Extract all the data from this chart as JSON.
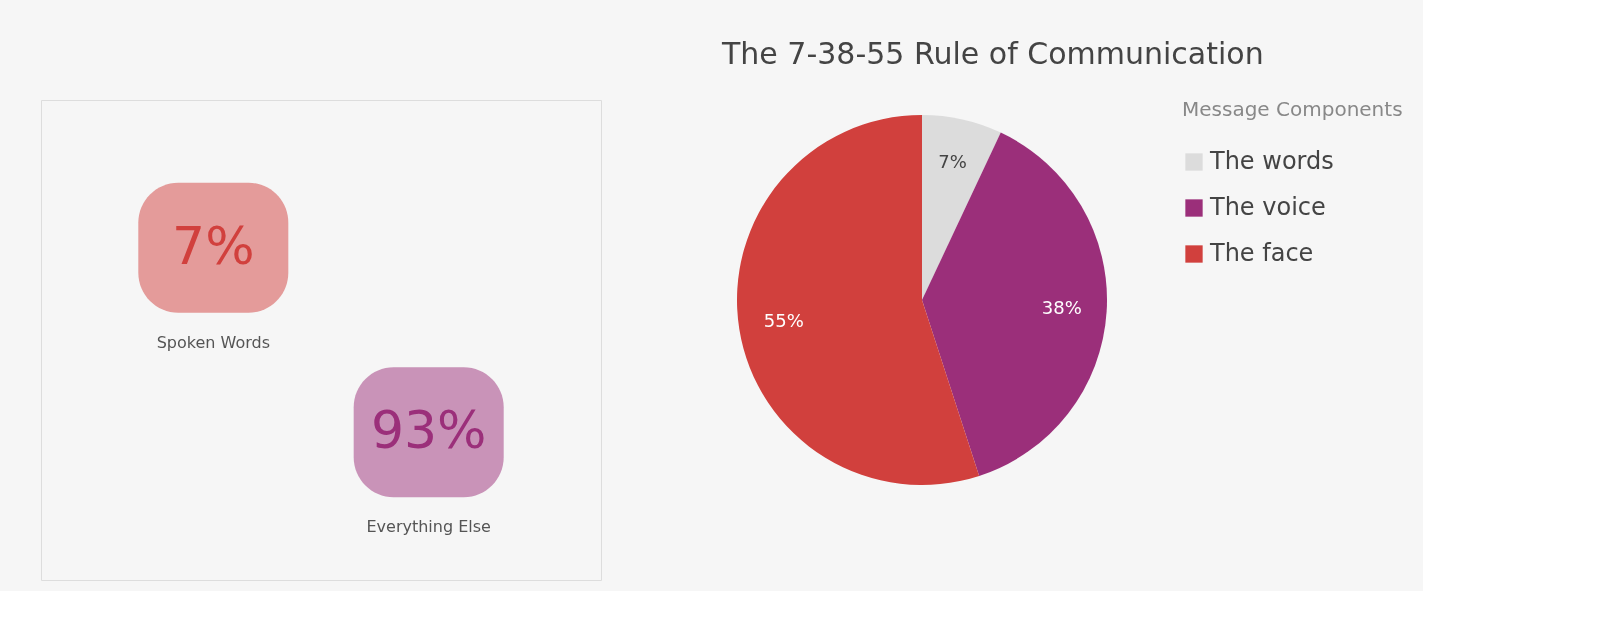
{
  "chart_data": [
    {
      "type": "other",
      "categories": [
        "Spoken Words",
        "Everything Else"
      ],
      "values": [
        7,
        93
      ],
      "value_labels": [
        "7%",
        "93%"
      ],
      "colors": [
        "#d1403d",
        "#9b2f7a"
      ]
    },
    {
      "type": "pie",
      "title": "The 7-38-55 Rule of Communication",
      "categories": [
        "The words",
        "The voice",
        "The face"
      ],
      "values": [
        7,
        38,
        55
      ],
      "colors": [
        "#dcdcdc",
        "#9b2f7a",
        "#d1403d"
      ],
      "value_labels": [
        "7%",
        "38%",
        "55%"
      ],
      "legend_title": "Message Components",
      "legend": "right"
    }
  ]
}
